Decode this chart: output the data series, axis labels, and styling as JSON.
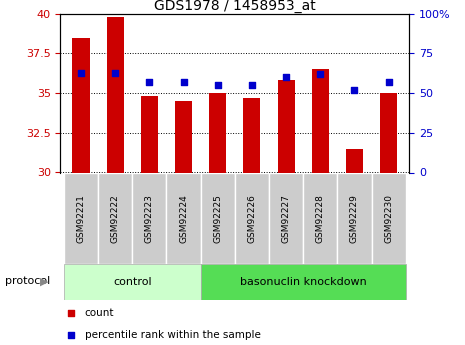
{
  "title": "GDS1978 / 1458953_at",
  "samples": [
    "GSM92221",
    "GSM92222",
    "GSM92223",
    "GSM92224",
    "GSM92225",
    "GSM92226",
    "GSM92227",
    "GSM92228",
    "GSM92229",
    "GSM92230"
  ],
  "count_values": [
    38.5,
    39.8,
    34.8,
    34.5,
    35.0,
    34.7,
    35.8,
    36.5,
    31.5,
    35.0
  ],
  "percentile_values": [
    63,
    63,
    57,
    57,
    55,
    55,
    60,
    62,
    52,
    57
  ],
  "ylim_left": [
    30,
    40
  ],
  "ylim_right": [
    0,
    100
  ],
  "yticks_left": [
    30,
    32.5,
    35,
    37.5,
    40
  ],
  "yticks_right": [
    0,
    25,
    50,
    75,
    100
  ],
  "ytick_labels_left": [
    "30",
    "32.5",
    "35",
    "37.5",
    "40"
  ],
  "ytick_labels_right": [
    "0",
    "25",
    "50",
    "75",
    "100%"
  ],
  "bar_color": "#cc0000",
  "dot_color": "#0000cc",
  "bar_bottom": 30,
  "groups": [
    {
      "label": "control",
      "start": 0,
      "end": 3,
      "color": "#ccffcc"
    },
    {
      "label": "basonuclin knockdown",
      "start": 4,
      "end": 9,
      "color": "#55dd55"
    }
  ],
  "protocol_label": "protocol",
  "legend_items": [
    {
      "label": "count",
      "color": "#cc0000"
    },
    {
      "label": "percentile rank within the sample",
      "color": "#0000cc"
    }
  ],
  "grid_color": "black",
  "grid_linestyle": "dotted",
  "tick_bg_color": "#cccccc",
  "tick_border_color": "#ffffff",
  "title_fontsize": 10,
  "bar_width": 0.5
}
